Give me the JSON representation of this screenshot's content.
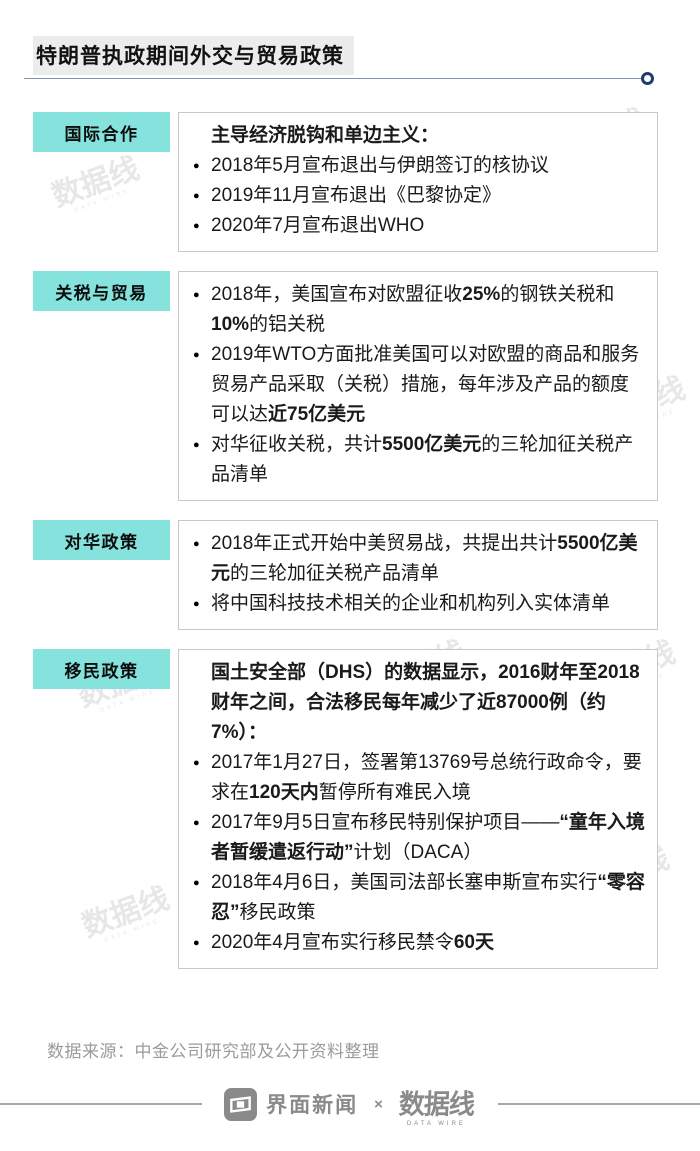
{
  "page": {
    "title": "特朗普执政期间外交与贸易政策"
  },
  "colors": {
    "section_label_bg": "#85e2dc",
    "title_rule": "#8095ad",
    "title_rule_circle": "#1e3c6e",
    "content_box_border": "#c8c8c8",
    "source_text": "#9b9b9b",
    "footer_gray": "#8a8a8a"
  },
  "watermark": {
    "text": "数据线",
    "subtext": "DATA WIRE"
  },
  "sections": [
    {
      "label": "国际合作",
      "items": [
        {
          "type": "header",
          "segments": [
            {
              "text": "主导经济脱钩和单边主义：",
              "bold": true
            }
          ]
        },
        {
          "type": "bullet",
          "segments": [
            {
              "text": "2018年5月宣布退出与伊朗签订的核协议",
              "bold": false
            }
          ]
        },
        {
          "type": "bullet",
          "segments": [
            {
              "text": "2019年11月宣布退出《巴黎协定》",
              "bold": false
            }
          ]
        },
        {
          "type": "bullet",
          "segments": [
            {
              "text": "2020年7月宣布退出WHO",
              "bold": false
            }
          ]
        }
      ]
    },
    {
      "label": "关税与贸易",
      "items": [
        {
          "type": "bullet",
          "segments": [
            {
              "text": "2018年，美国宣布对欧盟征收",
              "bold": false
            },
            {
              "text": "25%",
              "bold": true
            },
            {
              "text": "的钢铁关税和",
              "bold": false
            },
            {
              "text": "10%",
              "bold": true
            },
            {
              "text": "的铝关税",
              "bold": false
            }
          ]
        },
        {
          "type": "bullet",
          "segments": [
            {
              "text": "2019年WTO方面批准美国可以对欧盟的商品和服务贸易产品采取（关税）措施，每年涉及产品的额度可以达",
              "bold": false
            },
            {
              "text": "近75亿美元",
              "bold": true
            }
          ]
        },
        {
          "type": "bullet",
          "segments": [
            {
              "text": "对华征收关税，共计",
              "bold": false
            },
            {
              "text": "5500亿美元",
              "bold": true
            },
            {
              "text": "的三轮加征关税产品清单",
              "bold": false
            }
          ]
        }
      ]
    },
    {
      "label": "对华政策",
      "items": [
        {
          "type": "bullet",
          "segments": [
            {
              "text": "2018年正式开始中美贸易战，共提出共计",
              "bold": false
            },
            {
              "text": "5500亿美元",
              "bold": true
            },
            {
              "text": "的三轮加征关税产品清单",
              "bold": false
            }
          ]
        },
        {
          "type": "bullet",
          "segments": [
            {
              "text": "将中国科技技术相关的企业和机构列入实体清单",
              "bold": false
            }
          ]
        }
      ]
    },
    {
      "label": "移民政策",
      "items": [
        {
          "type": "header",
          "segments": [
            {
              "text": "国土安全部（DHS）的数据显示，2016财年至2018财年之间，合法移民每年减少了近87000例（约7%）：",
              "bold": true
            }
          ]
        },
        {
          "type": "bullet",
          "segments": [
            {
              "text": "2017年1月27日，签署第13769号总统行政命令，要求在",
              "bold": false
            },
            {
              "text": "120天内",
              "bold": true
            },
            {
              "text": "暂停所有难民入境",
              "bold": false
            }
          ]
        },
        {
          "type": "bullet",
          "segments": [
            {
              "text": "2017年9月5日宣布移民特别保护项目——",
              "bold": false
            },
            {
              "text": "“童年入境者暂缓遣返行动”",
              "bold": true
            },
            {
              "text": "计划（DACA）",
              "bold": false
            }
          ]
        },
        {
          "type": "bullet",
          "segments": [
            {
              "text": "2018年4月6日，美国司法部长塞申斯宣布实行",
              "bold": false
            },
            {
              "text": "“零容忍”",
              "bold": true
            },
            {
              "text": "移民政策",
              "bold": false
            }
          ]
        },
        {
          "type": "bullet",
          "segments": [
            {
              "text": "2020年4月宣布实行移民禁令",
              "bold": false
            },
            {
              "text": "60天",
              "bold": true
            }
          ]
        }
      ]
    }
  ],
  "footer": {
    "source": "数据来源：中金公司研究部及公开资料整理",
    "jiemian_logo_text": "界面新闻",
    "separator": "×",
    "datawire_logo_text": "数据线",
    "datawire_logo_subtext": "DATA WIRE"
  }
}
